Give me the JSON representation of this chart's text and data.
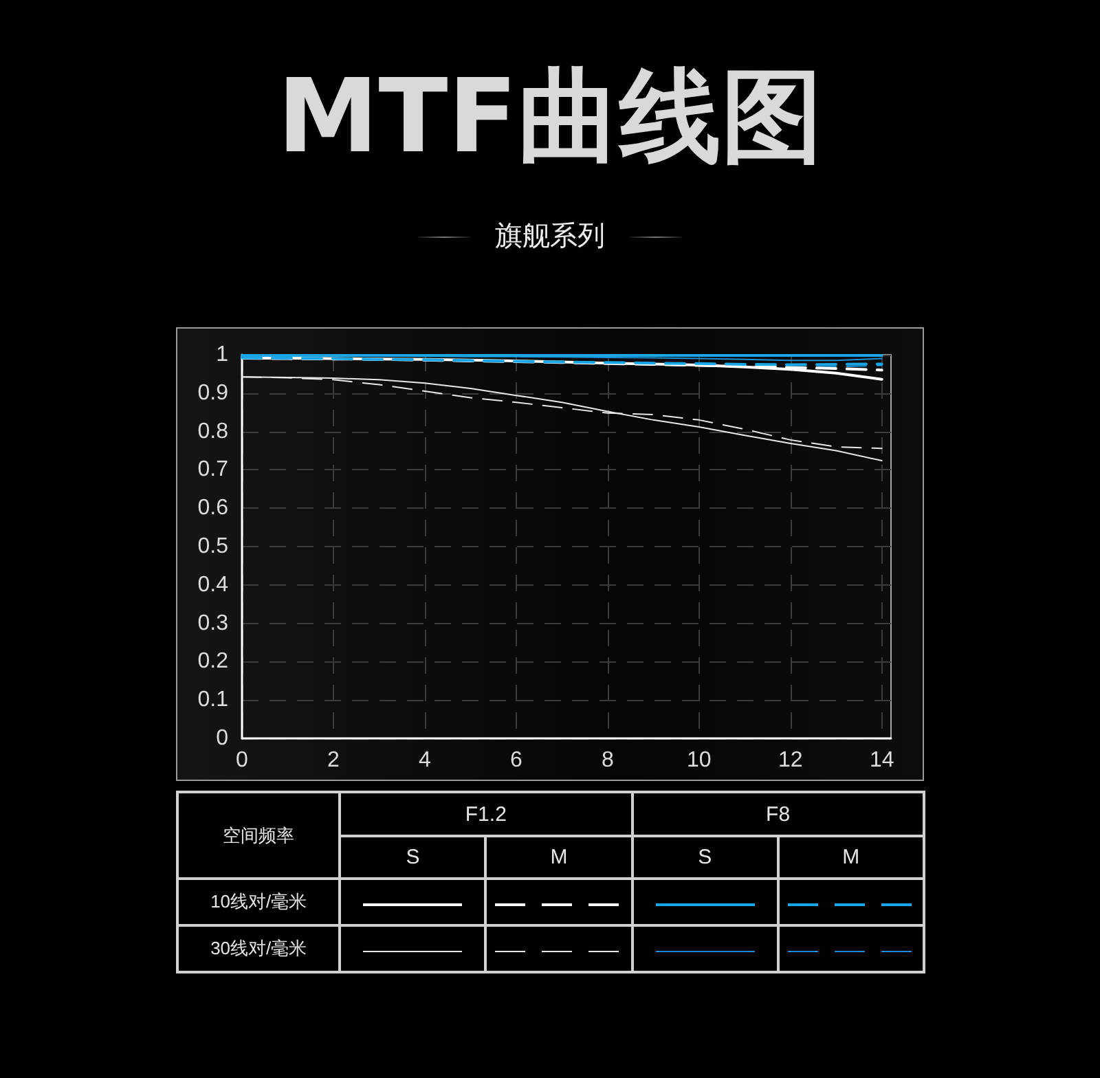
{
  "chart_data": {
    "type": "line",
    "title": "MTF曲线图",
    "subtitle": "旗舰系列",
    "x": [
      0,
      1,
      2,
      3,
      4,
      5,
      6,
      7,
      8,
      9,
      10,
      11,
      12,
      13,
      14
    ],
    "series": [
      {
        "color": "#ffffff",
        "line_style": "solid",
        "values": [
          0.991,
          0.991,
          0.99,
          0.989,
          0.988,
          0.986,
          0.984,
          0.981,
          0.978,
          0.976,
          0.973,
          0.968,
          0.962,
          0.952,
          0.936
        ]
      },
      {
        "color": "#ffffff",
        "line_style": "dashed",
        "values": [
          0.991,
          0.99,
          0.989,
          0.988,
          0.986,
          0.984,
          0.982,
          0.98,
          0.977,
          0.975,
          0.972,
          0.97,
          0.967,
          0.964,
          0.96
        ]
      },
      {
        "color": "#19a6e6",
        "line_style": "solid",
        "values": [
          0.998,
          0.998,
          0.998,
          0.998,
          0.998,
          0.998,
          0.998,
          0.998,
          0.998,
          0.998,
          0.998,
          0.998,
          0.998,
          0.998,
          0.998
        ]
      },
      {
        "color": "#19a6e6",
        "line_style": "dashed",
        "values": [
          0.992,
          0.991,
          0.99,
          0.988,
          0.987,
          0.985,
          0.983,
          0.981,
          0.98,
          0.978,
          0.977,
          0.975,
          0.974,
          0.975,
          0.976
        ]
      },
      {
        "color": "#e8e8e8",
        "line_style": "solid",
        "values": [
          0.942,
          0.941,
          0.939,
          0.935,
          0.926,
          0.912,
          0.894,
          0.876,
          0.852,
          0.83,
          0.812,
          0.79,
          0.769,
          0.75,
          0.724
        ]
      },
      {
        "color": "#e8e8e8",
        "line_style": "dashed",
        "values": [
          0.942,
          0.94,
          0.935,
          0.922,
          0.905,
          0.888,
          0.876,
          0.862,
          0.848,
          0.844,
          0.83,
          0.806,
          0.778,
          0.76,
          0.756
        ]
      },
      {
        "color": "#1b8fd0",
        "line_style": "solid",
        "values": [
          0.998,
          0.998,
          0.997,
          0.997,
          0.996,
          0.995,
          0.995,
          0.994,
          0.993,
          0.992,
          0.99,
          0.988,
          0.985,
          0.985,
          0.99
        ]
      },
      {
        "color": "#1b8fd0",
        "line_style": "dashed",
        "values": [
          0.99,
          0.989,
          0.988,
          0.986,
          0.985,
          0.983,
          0.981,
          0.979,
          0.978,
          0.975,
          0.973,
          0.97,
          0.968,
          0.969,
          0.972
        ]
      }
    ],
    "xlim": [
      0,
      14.2
    ],
    "xticks": [
      0,
      2,
      4,
      6,
      8,
      10,
      12,
      14
    ],
    "ylim": [
      0,
      1
    ],
    "yticks": [
      0,
      0.1,
      0.2,
      0.3,
      0.4,
      0.5,
      0.6,
      0.7,
      0.8,
      0.9,
      1
    ],
    "grid": true,
    "legend_title": "空间频率",
    "annotations": [
      "F1.2",
      "F8",
      "S",
      "M",
      "S",
      "M",
      "10线对/毫米",
      "30线对/毫米"
    ]
  }
}
